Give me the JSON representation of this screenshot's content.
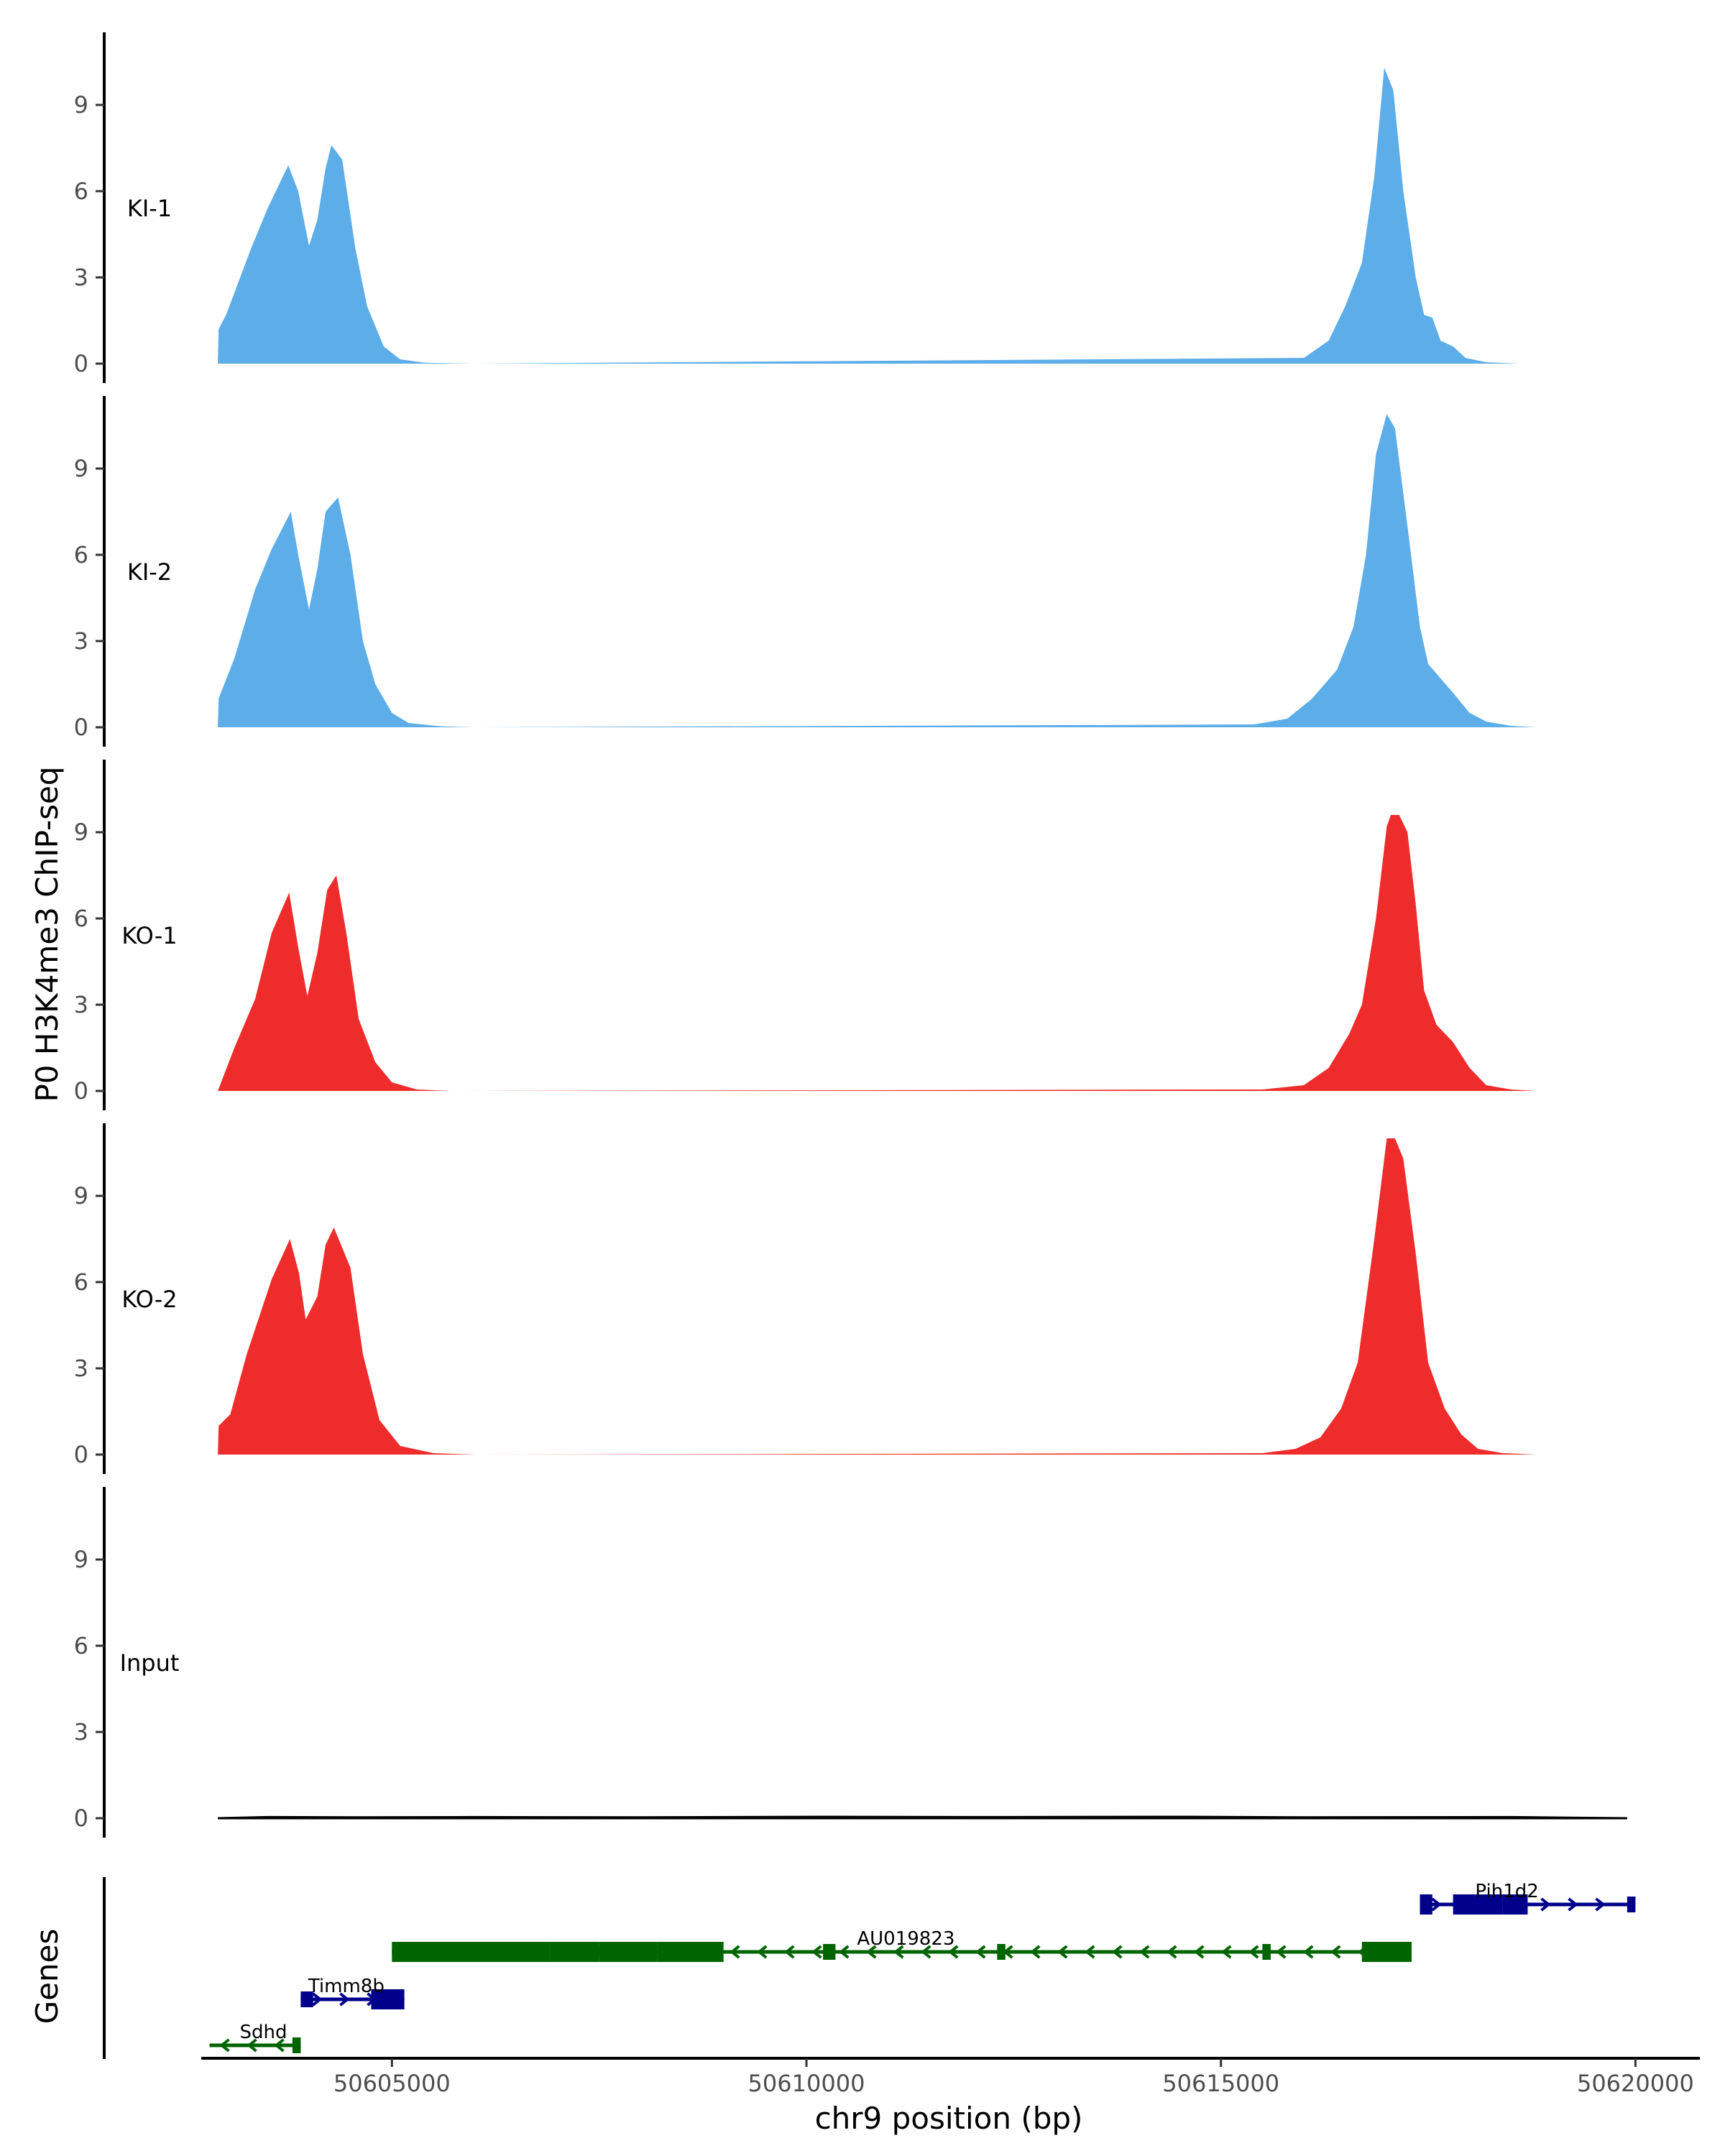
{
  "chart_data": {
    "type": "area",
    "title": "",
    "ylabel": "P0 H3K4me3 ChIP-seq",
    "xlabel": "chr9 position (bp)",
    "gene_track_label": "Genes",
    "xlim": [
      50602700,
      50620300
    ],
    "ylim": [
      0,
      11.5
    ],
    "y_ticks": [
      "0",
      "3",
      "6",
      "9"
    ],
    "x_ticks": [
      {
        "value": 50605000,
        "label": "50605000"
      },
      {
        "value": 50610000,
        "label": "50610000"
      },
      {
        "value": 50615000,
        "label": "50615000"
      },
      {
        "value": 50620000,
        "label": "50620000"
      }
    ],
    "series": [
      {
        "name": "KI-1",
        "color": "#5dade8",
        "points": [
          [
            50602900,
            0
          ],
          [
            50602910,
            1.2
          ],
          [
            50603000,
            1.7
          ],
          [
            50603300,
            4.0
          ],
          [
            50603500,
            5.4
          ],
          [
            50603750,
            6.9
          ],
          [
            50603870,
            6.0
          ],
          [
            50604000,
            4.1
          ],
          [
            50604100,
            5.0
          ],
          [
            50604200,
            6.8
          ],
          [
            50604270,
            7.6
          ],
          [
            50604400,
            7.1
          ],
          [
            50604560,
            4.0
          ],
          [
            50604700,
            2.0
          ],
          [
            50604900,
            0.6
          ],
          [
            50605100,
            0.15
          ],
          [
            50605400,
            0.03
          ],
          [
            50606000,
            0
          ],
          [
            50616000,
            0.2
          ],
          [
            50616300,
            0.8
          ],
          [
            50616500,
            2.0
          ],
          [
            50616700,
            3.5
          ],
          [
            50616850,
            6.5
          ],
          [
            50616970,
            10.3
          ],
          [
            50617080,
            9.5
          ],
          [
            50617200,
            6.0
          ],
          [
            50617350,
            3.0
          ],
          [
            50617450,
            1.7
          ],
          [
            50617550,
            1.6
          ],
          [
            50617650,
            0.8
          ],
          [
            50617800,
            0.6
          ],
          [
            50617950,
            0.2
          ],
          [
            50618200,
            0.05
          ],
          [
            50618600,
            0
          ],
          [
            50619900,
            0
          ]
        ]
      },
      {
        "name": "KI-2",
        "color": "#5dade8",
        "points": [
          [
            50602900,
            0
          ],
          [
            50602910,
            1.0
          ],
          [
            50603100,
            2.4
          ],
          [
            50603350,
            4.8
          ],
          [
            50603550,
            6.2
          ],
          [
            50603780,
            7.5
          ],
          [
            50603870,
            6.0
          ],
          [
            50604000,
            4.1
          ],
          [
            50604100,
            5.5
          ],
          [
            50604200,
            7.5
          ],
          [
            50604350,
            8.0
          ],
          [
            50604500,
            6.0
          ],
          [
            50604650,
            3.0
          ],
          [
            50604800,
            1.5
          ],
          [
            50605000,
            0.5
          ],
          [
            50605200,
            0.15
          ],
          [
            50605600,
            0.03
          ],
          [
            50606000,
            0
          ],
          [
            50615400,
            0.1
          ],
          [
            50615800,
            0.3
          ],
          [
            50616100,
            1.0
          ],
          [
            50616400,
            2.0
          ],
          [
            50616600,
            3.5
          ],
          [
            50616750,
            6.0
          ],
          [
            50616870,
            9.5
          ],
          [
            50617000,
            10.9
          ],
          [
            50617100,
            10.4
          ],
          [
            50617250,
            7.0
          ],
          [
            50617400,
            3.5
          ],
          [
            50617500,
            2.2
          ],
          [
            50617650,
            1.7
          ],
          [
            50617800,
            1.2
          ],
          [
            50618000,
            0.5
          ],
          [
            50618200,
            0.2
          ],
          [
            50618500,
            0.05
          ],
          [
            50618800,
            0
          ],
          [
            50619900,
            0
          ]
        ]
      },
      {
        "name": "KO-1",
        "color": "#ee2c2c",
        "points": [
          [
            50602900,
            0
          ],
          [
            50603100,
            1.5
          ],
          [
            50603350,
            3.2
          ],
          [
            50603550,
            5.5
          ],
          [
            50603760,
            6.9
          ],
          [
            50603870,
            5.0
          ],
          [
            50603980,
            3.3
          ],
          [
            50604100,
            4.8
          ],
          [
            50604220,
            7.0
          ],
          [
            50604330,
            7.5
          ],
          [
            50604450,
            5.5
          ],
          [
            50604600,
            2.5
          ],
          [
            50604800,
            1.0
          ],
          [
            50605000,
            0.3
          ],
          [
            50605300,
            0.05
          ],
          [
            50605700,
            0
          ],
          [
            50615500,
            0.05
          ],
          [
            50616000,
            0.2
          ],
          [
            50616300,
            0.8
          ],
          [
            50616550,
            2.0
          ],
          [
            50616700,
            3.0
          ],
          [
            50616870,
            6.0
          ],
          [
            50617000,
            9.2
          ],
          [
            50617050,
            9.6
          ],
          [
            50617150,
            9.6
          ],
          [
            50617250,
            9.0
          ],
          [
            50617350,
            6.5
          ],
          [
            50617450,
            3.5
          ],
          [
            50617600,
            2.3
          ],
          [
            50617800,
            1.7
          ],
          [
            50618000,
            0.8
          ],
          [
            50618200,
            0.2
          ],
          [
            50618500,
            0.05
          ],
          [
            50618800,
            0
          ],
          [
            50619900,
            0
          ]
        ]
      },
      {
        "name": "KO-2",
        "color": "#ee2c2c",
        "points": [
          [
            50602900,
            0
          ],
          [
            50602910,
            1.0
          ],
          [
            50603050,
            1.4
          ],
          [
            50603250,
            3.5
          ],
          [
            50603550,
            6.1
          ],
          [
            50603770,
            7.5
          ],
          [
            50603880,
            6.3
          ],
          [
            50603960,
            4.7
          ],
          [
            50604100,
            5.5
          ],
          [
            50604200,
            7.3
          ],
          [
            50604300,
            7.9
          ],
          [
            50604500,
            6.5
          ],
          [
            50604650,
            3.5
          ],
          [
            50604850,
            1.2
          ],
          [
            50605100,
            0.3
          ],
          [
            50605500,
            0.05
          ],
          [
            50606000,
            0
          ],
          [
            50615500,
            0.05
          ],
          [
            50615900,
            0.2
          ],
          [
            50616200,
            0.6
          ],
          [
            50616450,
            1.6
          ],
          [
            50616650,
            3.2
          ],
          [
            50616850,
            7.5
          ],
          [
            50617000,
            11.0
          ],
          [
            50617100,
            11.0
          ],
          [
            50617200,
            10.3
          ],
          [
            50617350,
            7.0
          ],
          [
            50617500,
            3.2
          ],
          [
            50617700,
            1.6
          ],
          [
            50617900,
            0.7
          ],
          [
            50618100,
            0.2
          ],
          [
            50618400,
            0.05
          ],
          [
            50618800,
            0
          ],
          [
            50619500,
            0
          ]
        ]
      },
      {
        "name": "Input",
        "color": "#000000",
        "points": [
          [
            50602900,
            0
          ],
          [
            50603500,
            0.04
          ],
          [
            50604500,
            0.03
          ],
          [
            50606000,
            0.04
          ],
          [
            50608000,
            0.03
          ],
          [
            50610200,
            0.05
          ],
          [
            50612000,
            0.04
          ],
          [
            50614500,
            0.05
          ],
          [
            50616000,
            0.03
          ],
          [
            50618500,
            0.04
          ],
          [
            50619900,
            0
          ]
        ]
      }
    ],
    "genes": [
      {
        "name": "Pih1d2",
        "strand": "+",
        "color": "#00008b",
        "row": 0,
        "start": 50617400,
        "end": 50620000,
        "exons": [
          [
            50617400,
            50617550,
            "thick"
          ],
          [
            50617800,
            50618400,
            "thick"
          ],
          [
            50618400,
            50618700,
            "thick"
          ],
          [
            50619900,
            50620000,
            "thin"
          ]
        ]
      },
      {
        "name": "AU019823",
        "strand": "-",
        "color": "#006400",
        "row": 1,
        "start": 50605000,
        "end": 50617300,
        "exons": [
          [
            50605000,
            50606900,
            "thick"
          ],
          [
            50606900,
            50607500,
            "thick"
          ],
          [
            50607500,
            50608200,
            "thick"
          ],
          [
            50608200,
            50609000,
            "thick"
          ],
          [
            50610200,
            50610350,
            "thin"
          ],
          [
            50612300,
            50612400,
            "thin"
          ],
          [
            50615500,
            50615600,
            "thin"
          ],
          [
            50616700,
            50617300,
            "thick"
          ]
        ]
      },
      {
        "name": "Timm8b",
        "strand": "+",
        "color": "#00008b",
        "row": 2,
        "start": 50603900,
        "end": 50605150,
        "exons": [
          [
            50603900,
            50604050,
            "thin"
          ],
          [
            50604750,
            50605150,
            "thick"
          ]
        ]
      },
      {
        "name": "Sdhd",
        "strand": "-",
        "color": "#006400",
        "row": 3,
        "start": 50602800,
        "end": 50603900,
        "exons": [
          [
            50603800,
            50603900,
            "thin"
          ]
        ]
      }
    ]
  }
}
